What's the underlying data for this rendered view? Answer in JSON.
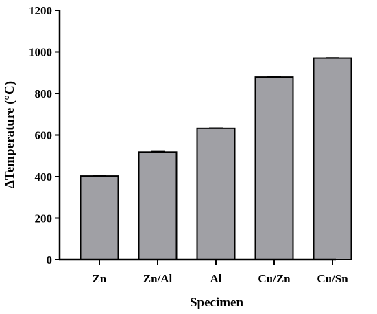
{
  "chart_data": {
    "type": "bar",
    "title": "",
    "xlabel": "Specimen",
    "ylabel": "ΔTemperature (°C)",
    "categories": [
      "Zn",
      "Zn/Al",
      "Al",
      "Cu/Zn",
      "Cu/Sn"
    ],
    "values": [
      403,
      518,
      632,
      879,
      970
    ],
    "errors": [
      3,
      3,
      2,
      3,
      2
    ],
    "ylim": [
      0,
      1200
    ],
    "yticks": [
      0,
      200,
      400,
      600,
      800,
      1000,
      1200
    ],
    "grid": false,
    "legend": "none",
    "colors": {
      "bar": "#a0a0a5",
      "stroke": "#000000"
    }
  }
}
